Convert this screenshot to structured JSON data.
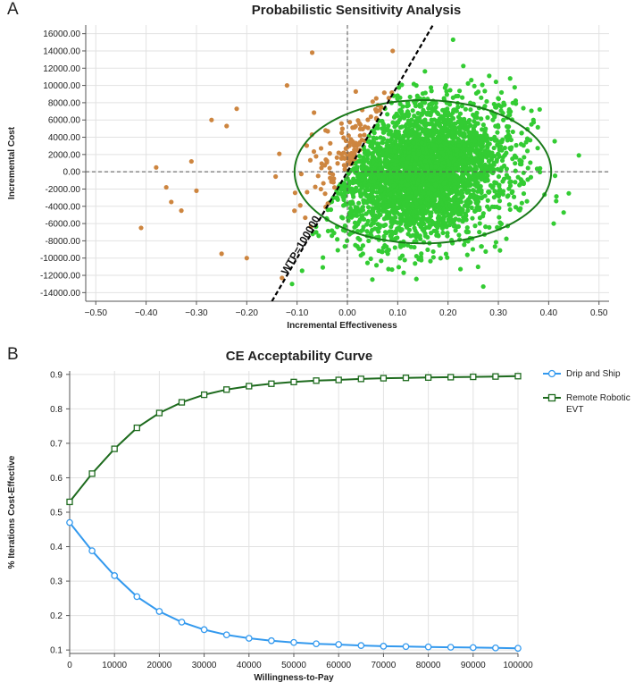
{
  "panels": {
    "a_letter": "A",
    "b_letter": "B"
  },
  "chart_data": [
    {
      "type": "scatter",
      "title": "Probabilistic Sensitivity Analysis",
      "xlabel": "Incremental Effectiveness",
      "ylabel": "Incremental Cost",
      "xlim": [
        -0.52,
        0.52
      ],
      "ylim": [
        -15000,
        17000
      ],
      "x_ticks": [
        "-0.50",
        "-0.40",
        "-0.30",
        "-0.20",
        "-0.10",
        "0.00",
        "0.10",
        "0.20",
        "0.30",
        "0.40",
        "0.50"
      ],
      "y_ticks": [
        "16000.00",
        "14000.00",
        "12000.00",
        "10000.00",
        "8000.00",
        "6000.00",
        "4000.00",
        "2000.00",
        "0.00",
        "-2000.00",
        "-4000.00",
        "-6000.00",
        "-8000.00",
        "-10000.00",
        "-12000.00",
        "-14000.00"
      ],
      "grid": true,
      "reference_lines": {
        "x": 0,
        "y": 0
      },
      "wtp_line": {
        "label": "WTP=100000",
        "slope": 100000
      },
      "colors": {
        "below_wtp": "#33cc33",
        "above_wtp": "#cd853f",
        "ellipse": "#1a7a1a",
        "wtp_line": "#000000"
      },
      "cloud": {
        "n_points": 3500,
        "mean_x": 0.15,
        "sd_x": 0.085,
        "mean_y": 0,
        "sd_y": 3800
      },
      "ellipse": {
        "center_x": 0.15,
        "center_y": 0,
        "half_width_x": 0.255,
        "half_height_y": 8300
      },
      "outliers": [
        {
          "x": -0.41,
          "y": -6500
        },
        {
          "x": -0.38,
          "y": 500
        },
        {
          "x": -0.36,
          "y": -1800
        },
        {
          "x": -0.35,
          "y": -3500
        },
        {
          "x": -0.33,
          "y": -4500
        },
        {
          "x": -0.31,
          "y": 1200
        },
        {
          "x": -0.3,
          "y": -2200
        },
        {
          "x": -0.27,
          "y": 6000
        },
        {
          "x": -0.24,
          "y": 5300
        },
        {
          "x": -0.22,
          "y": 7300
        },
        {
          "x": -0.25,
          "y": -9500
        },
        {
          "x": -0.2,
          "y": -10000
        },
        {
          "x": -0.12,
          "y": 10000
        },
        {
          "x": -0.07,
          "y": 13800
        },
        {
          "x": -0.13,
          "y": -12300
        },
        {
          "x": 0.21,
          "y": 15300
        },
        {
          "x": 0.46,
          "y": 1900
        },
        {
          "x": 0.44,
          "y": -2500
        },
        {
          "x": 0.41,
          "y": -6000
        },
        {
          "x": 0.27,
          "y": -13300
        },
        {
          "x": -0.11,
          "y": -13000
        },
        {
          "x": 0.09,
          "y": 14000
        }
      ]
    },
    {
      "type": "line",
      "title": "CE Acceptability Curve",
      "xlabel": "Willingness-to-Pay",
      "ylabel": "% Iterations Cost-Effective",
      "xlim": [
        0,
        100000
      ],
      "ylim": [
        0.09,
        0.91
      ],
      "x_ticks": [
        "0",
        "10000",
        "20000",
        "30000",
        "40000",
        "50000",
        "60000",
        "70000",
        "80000",
        "90000",
        "100000"
      ],
      "y_ticks": [
        "0.9",
        "0.8",
        "0.7",
        "0.6",
        "0.5",
        "0.4",
        "0.3",
        "0.2",
        "0.1"
      ],
      "grid": true,
      "legend_position": "right",
      "x": [
        0,
        5000,
        10000,
        15000,
        20000,
        25000,
        30000,
        35000,
        40000,
        45000,
        50000,
        55000,
        60000,
        65000,
        70000,
        75000,
        80000,
        85000,
        90000,
        95000,
        100000
      ],
      "series": [
        {
          "name": "Drip and Ship",
          "color": "#3399ee",
          "marker": "circle",
          "values": [
            0.47,
            0.388,
            0.316,
            0.255,
            0.212,
            0.181,
            0.159,
            0.144,
            0.134,
            0.127,
            0.122,
            0.118,
            0.116,
            0.113,
            0.111,
            0.11,
            0.109,
            0.108,
            0.107,
            0.106,
            0.105
          ]
        },
        {
          "name": "Remote Robotic EVT",
          "color": "#1e6b1e",
          "marker": "square",
          "values": [
            0.53,
            0.612,
            0.684,
            0.745,
            0.788,
            0.819,
            0.841,
            0.856,
            0.866,
            0.873,
            0.878,
            0.882,
            0.884,
            0.887,
            0.889,
            0.89,
            0.891,
            0.892,
            0.893,
            0.894,
            0.895
          ]
        }
      ]
    }
  ]
}
